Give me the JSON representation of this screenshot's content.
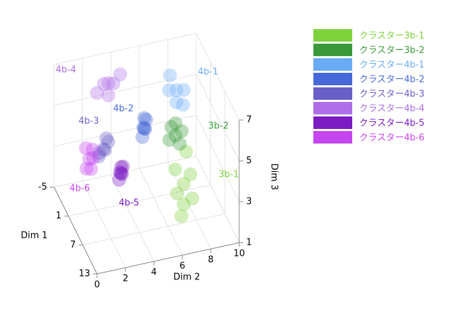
{
  "chart_data": {
    "type": "scatter3d",
    "xlabel": "Dim 1",
    "ylabel": "Dim 2",
    "zlabel": "Dim 3",
    "xlim": [
      -5,
      13
    ],
    "xticks": [
      -5,
      1,
      7,
      13
    ],
    "ylim": [
      0,
      10
    ],
    "yticks": [
      0,
      2,
      4,
      6,
      8,
      10
    ],
    "zlim": [
      1,
      7
    ],
    "zticks": [
      1,
      3,
      5,
      7
    ],
    "grid": true,
    "series": [
      {
        "name": "クラスター3b-1",
        "color": "#7ed23c",
        "x": [
          11.2,
          11.6,
          10.8,
          11.4,
          11.0,
          11.2,
          11.2,
          11.2
        ],
        "y": [
          6.4,
          6.8,
          6.0,
          6.2,
          6.6,
          6.4,
          7.0,
          5.8
        ],
        "z": [
          4,
          4.5,
          3.5,
          2.5,
          5.5,
          3,
          3.2,
          4.8
        ]
      },
      {
        "name": "クラスター3b-2",
        "color": "#3a9a3a",
        "x": [
          1.8,
          2.4,
          1.2,
          1.6,
          2.0,
          1.8
        ],
        "y": [
          7.4,
          7.6,
          7.2,
          7.0,
          7.8,
          7.4
        ],
        "z": [
          4,
          3.7,
          4.3,
          3.8,
          4.2,
          4.6
        ]
      },
      {
        "name": "クラスター4b-1",
        "color": "#6aabf5",
        "x": [
          1.0,
          -0.5,
          2.5,
          1.5,
          0.5,
          1.0
        ],
        "y": [
          7.6,
          7.4,
          7.8,
          7.0,
          8.2,
          7.6
        ],
        "z": [
          6,
          6.4,
          5.6,
          6.2,
          5.8,
          5.4
        ]
      },
      {
        "name": "クラスター4b-2",
        "color": "#4668d8",
        "x": [
          3.0,
          2.6,
          3.4,
          3.0,
          2.8,
          3.2
        ],
        "y": [
          5.0,
          5.2,
          4.8,
          5.0,
          5.1,
          4.9
        ],
        "z": [
          5,
          5.3,
          4.7,
          5.5,
          4.9,
          5.1
        ]
      },
      {
        "name": "クラスター4b-3",
        "color": "#6a5fc8",
        "x": [
          1.4,
          1.0,
          1.8,
          1.4,
          0.8,
          2.0
        ],
        "y": [
          2.4,
          2.8,
          2.0,
          2.6,
          2.2,
          2.4
        ],
        "z": [
          4,
          4.2,
          3.8,
          4.5,
          3.7,
          4.1
        ]
      },
      {
        "name": "クラスター4b-4",
        "color": "#ae6ee8",
        "x": [
          -3.1,
          -2.0,
          -4.0,
          -3.5,
          -2.5,
          -3.1
        ],
        "y": [
          3.5,
          3.0,
          4.0,
          4.4,
          2.6,
          3.5
        ],
        "z": [
          6,
          6.3,
          5.7,
          6.2,
          5.8,
          5.4
        ]
      },
      {
        "name": "クラスター4b-5",
        "color": "#7b1bc4",
        "x": [
          2.8,
          2.4,
          3.2,
          2.8,
          2.6,
          3.0
        ],
        "y": [
          3.4,
          3.6,
          3.2,
          3.4,
          3.5,
          3.3
        ],
        "z": [
          3,
          3.2,
          2.8,
          3.3,
          2.9,
          3.1
        ]
      },
      {
        "name": "クラスター4b-6",
        "color": "#c545f0",
        "x": [
          2.7,
          2.2,
          3.2,
          2.7,
          2.4,
          3.0
        ],
        "y": [
          1.2,
          1.5,
          0.9,
          1.3,
          1.0,
          1.4
        ],
        "z": [
          4,
          4.3,
          3.7,
          3.5,
          4.5,
          4.1
        ]
      }
    ],
    "annotations": [
      {
        "text": "3b-1",
        "color": "#7ed23c"
      },
      {
        "text": "3b-2",
        "color": "#3a9a3a"
      },
      {
        "text": "4b-1",
        "color": "#6aabf5"
      },
      {
        "text": "4b-2",
        "color": "#4668d8"
      },
      {
        "text": "4b-3",
        "color": "#6a5fc8"
      },
      {
        "text": "4b-4",
        "color": "#ae6ee8"
      },
      {
        "text": "4b-5",
        "color": "#7b1bc4"
      },
      {
        "text": "4b-6",
        "color": "#c545f0"
      }
    ]
  }
}
